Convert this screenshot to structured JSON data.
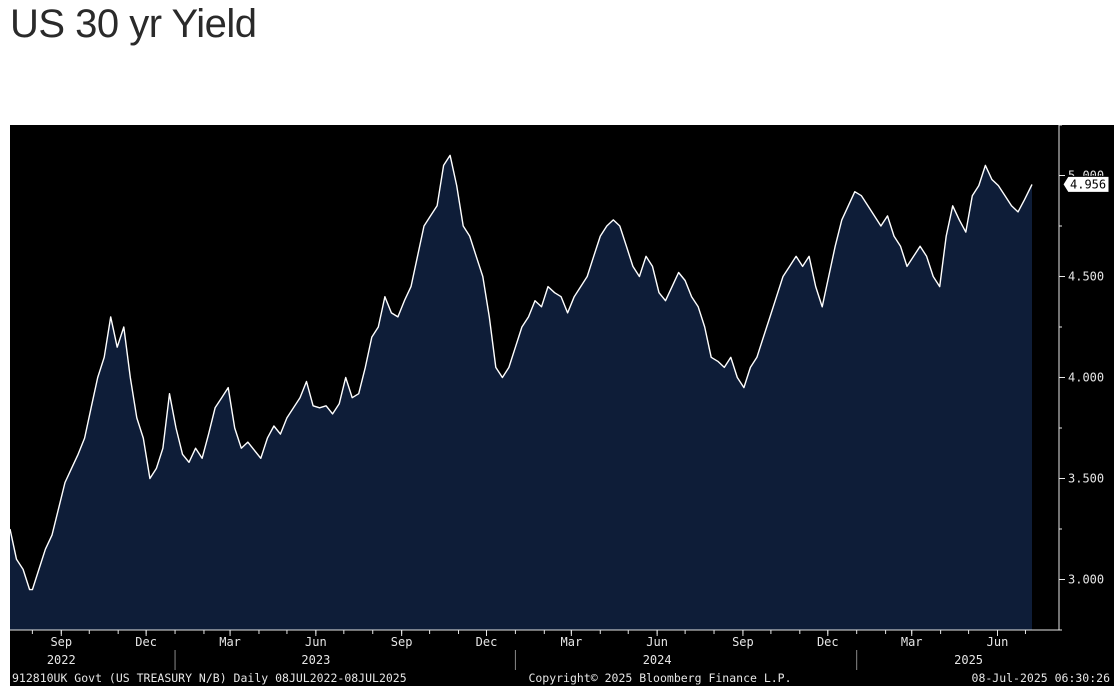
{
  "title": "US 30 yr Yield",
  "colors": {
    "background": "#000000",
    "area_fill": "#0e1d38",
    "line": "#ffffff",
    "axis_text": "#e6e6e6",
    "title_text": "#2a2a2a"
  },
  "chart_data": {
    "type": "area",
    "title": "US 30 yr Yield",
    "x_range": [
      "2022-07-08",
      "2025-07-08"
    ],
    "ylim": [
      2.75,
      5.25
    ],
    "y_ticks": [
      3.0,
      3.5,
      4.0,
      4.5,
      5.0
    ],
    "y_tick_labels": [
      "3.000",
      "3.500",
      "4.000",
      "4.500",
      "5.000"
    ],
    "last_value_label": "4.956",
    "month_ticks": [
      {
        "date": "2022-09-01",
        "label": "Sep"
      },
      {
        "date": "2022-12-01",
        "label": "Dec"
      },
      {
        "date": "2023-03-01",
        "label": "Mar"
      },
      {
        "date": "2023-06-01",
        "label": "Jun"
      },
      {
        "date": "2023-09-01",
        "label": "Sep"
      },
      {
        "date": "2023-12-01",
        "label": "Dec"
      },
      {
        "date": "2024-03-01",
        "label": "Mar"
      },
      {
        "date": "2024-06-01",
        "label": "Jun"
      },
      {
        "date": "2024-09-01",
        "label": "Sep"
      },
      {
        "date": "2024-12-01",
        "label": "Dec"
      },
      {
        "date": "2025-03-01",
        "label": "Mar"
      },
      {
        "date": "2025-06-01",
        "label": "Jun"
      }
    ],
    "year_labels": [
      {
        "date": "2022-09-01",
        "label": "2022"
      },
      {
        "date": "2023-06-01",
        "label": "2023"
      },
      {
        "date": "2024-06-01",
        "label": "2024"
      },
      {
        "date": "2025-05-01",
        "label": "2025"
      }
    ],
    "year_dividers": [
      "2023-01-01",
      "2024-01-01",
      "2025-01-01"
    ],
    "series": [
      {
        "x": [
          "2022-07-08",
          "2022-07-15",
          "2022-07-22",
          "2022-07-29",
          "2022-08-01",
          "2022-08-08",
          "2022-08-15",
          "2022-08-22",
          "2022-08-29",
          "2022-09-05",
          "2022-09-12",
          "2022-09-19",
          "2022-09-26",
          "2022-10-03",
          "2022-10-10",
          "2022-10-17",
          "2022-10-24",
          "2022-10-31",
          "2022-11-07",
          "2022-11-14",
          "2022-11-21",
          "2022-11-28",
          "2022-12-05",
          "2022-12-12",
          "2022-12-19",
          "2022-12-26",
          "2023-01-02",
          "2023-01-09",
          "2023-01-16",
          "2023-01-23",
          "2023-01-30",
          "2023-02-06",
          "2023-02-13",
          "2023-02-20",
          "2023-02-27",
          "2023-03-06",
          "2023-03-13",
          "2023-03-20",
          "2023-03-27",
          "2023-04-03",
          "2023-04-10",
          "2023-04-17",
          "2023-04-24",
          "2023-05-01",
          "2023-05-08",
          "2023-05-15",
          "2023-05-22",
          "2023-05-29",
          "2023-06-05",
          "2023-06-12",
          "2023-06-19",
          "2023-06-26",
          "2023-07-03",
          "2023-07-10",
          "2023-07-17",
          "2023-07-24",
          "2023-07-31",
          "2023-08-07",
          "2023-08-14",
          "2023-08-21",
          "2023-08-28",
          "2023-09-04",
          "2023-09-11",
          "2023-09-18",
          "2023-09-25",
          "2023-10-02",
          "2023-10-09",
          "2023-10-16",
          "2023-10-23",
          "2023-10-30",
          "2023-11-06",
          "2023-11-13",
          "2023-11-20",
          "2023-11-27",
          "2023-12-04",
          "2023-12-11",
          "2023-12-18",
          "2023-12-25",
          "2024-01-01",
          "2024-01-08",
          "2024-01-15",
          "2024-01-22",
          "2024-01-29",
          "2024-02-05",
          "2024-02-12",
          "2024-02-19",
          "2024-02-26",
          "2024-03-04",
          "2024-03-11",
          "2024-03-18",
          "2024-03-25",
          "2024-04-01",
          "2024-04-08",
          "2024-04-15",
          "2024-04-22",
          "2024-04-29",
          "2024-05-06",
          "2024-05-13",
          "2024-05-20",
          "2024-05-27",
          "2024-06-03",
          "2024-06-10",
          "2024-06-17",
          "2024-06-24",
          "2024-07-01",
          "2024-07-08",
          "2024-07-15",
          "2024-07-22",
          "2024-07-29",
          "2024-08-05",
          "2024-08-12",
          "2024-08-19",
          "2024-08-26",
          "2024-09-02",
          "2024-09-09",
          "2024-09-16",
          "2024-09-23",
          "2024-09-30",
          "2024-10-07",
          "2024-10-14",
          "2024-10-21",
          "2024-10-28",
          "2024-11-04",
          "2024-11-11",
          "2024-11-18",
          "2024-11-25",
          "2024-12-02",
          "2024-12-09",
          "2024-12-16",
          "2024-12-23",
          "2024-12-30",
          "2025-01-06",
          "2025-01-13",
          "2025-01-20",
          "2025-01-27",
          "2025-02-03",
          "2025-02-10",
          "2025-02-17",
          "2025-02-24",
          "2025-03-03",
          "2025-03-10",
          "2025-03-17",
          "2025-03-24",
          "2025-03-31",
          "2025-04-07",
          "2025-04-14",
          "2025-04-21",
          "2025-04-28",
          "2025-05-05",
          "2025-05-12",
          "2025-05-19",
          "2025-05-26",
          "2025-06-02",
          "2025-06-09",
          "2025-06-16",
          "2025-06-23",
          "2025-06-30",
          "2025-07-08"
        ],
        "y": [
          3.25,
          3.1,
          3.05,
          2.95,
          2.95,
          3.05,
          3.15,
          3.22,
          3.35,
          3.48,
          3.55,
          3.62,
          3.7,
          3.85,
          4.0,
          4.1,
          4.3,
          4.15,
          4.25,
          4.0,
          3.8,
          3.7,
          3.5,
          3.55,
          3.65,
          3.92,
          3.75,
          3.62,
          3.58,
          3.65,
          3.6,
          3.72,
          3.85,
          3.9,
          3.95,
          3.75,
          3.65,
          3.68,
          3.64,
          3.6,
          3.7,
          3.76,
          3.72,
          3.8,
          3.85,
          3.9,
          3.98,
          3.86,
          3.85,
          3.86,
          3.82,
          3.87,
          4.0,
          3.9,
          3.92,
          4.05,
          4.2,
          4.25,
          4.4,
          4.32,
          4.3,
          4.38,
          4.45,
          4.6,
          4.75,
          4.8,
          4.85,
          5.05,
          5.1,
          4.95,
          4.75,
          4.7,
          4.6,
          4.5,
          4.3,
          4.05,
          4.0,
          4.05,
          4.15,
          4.25,
          4.3,
          4.38,
          4.35,
          4.45,
          4.42,
          4.4,
          4.32,
          4.4,
          4.45,
          4.5,
          4.6,
          4.7,
          4.75,
          4.78,
          4.75,
          4.65,
          4.55,
          4.5,
          4.6,
          4.55,
          4.42,
          4.38,
          4.45,
          4.52,
          4.48,
          4.4,
          4.35,
          4.25,
          4.1,
          4.08,
          4.05,
          4.1,
          4.0,
          3.95,
          4.05,
          4.1,
          4.2,
          4.3,
          4.4,
          4.5,
          4.55,
          4.6,
          4.55,
          4.6,
          4.45,
          4.35,
          4.5,
          4.65,
          4.78,
          4.85,
          4.92,
          4.9,
          4.85,
          4.8,
          4.75,
          4.8,
          4.7,
          4.65,
          4.55,
          4.6,
          4.65,
          4.6,
          4.5,
          4.45,
          4.7,
          4.85,
          4.78,
          4.72,
          4.9,
          4.95,
          5.05,
          4.98,
          4.95,
          4.9,
          4.85,
          4.82,
          4.88,
          4.956
        ]
      }
    ]
  },
  "footer": {
    "left": "912810UK Govt (US TREASURY N/B)  Daily 08JUL2022-08JUL2025",
    "center": "Copyright© 2025 Bloomberg Finance L.P.",
    "right": "08-Jul-2025 06:30:26"
  }
}
